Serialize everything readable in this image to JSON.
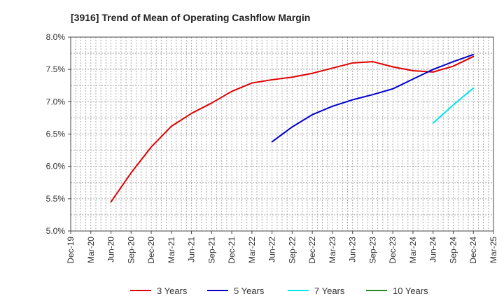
{
  "title": "[3916]  Trend of Mean of Operating Cashflow Margin",
  "chart_data": {
    "type": "line",
    "title": "[3916]  Trend of Mean of Operating Cashflow Margin",
    "xlabel": "",
    "ylabel": "",
    "x_ticks": [
      "Dec-19",
      "Mar-20",
      "Jun-20",
      "Sep-20",
      "Dec-20",
      "Mar-21",
      "Jun-21",
      "Sep-21",
      "Dec-21",
      "Mar-22",
      "Jun-22",
      "Sep-22",
      "Dec-22",
      "Mar-23",
      "Jun-23",
      "Sep-23",
      "Dec-23",
      "Mar-24",
      "Jun-24",
      "Sep-24",
      "Dec-24",
      "Mar-25"
    ],
    "y_ticks": [
      "5.0%",
      "5.5%",
      "6.0%",
      "6.5%",
      "7.0%",
      "7.5%",
      "8.0%"
    ],
    "ylim": [
      5.0,
      8.0
    ],
    "y_unit": "%",
    "grid": true,
    "legend_position": "bottom",
    "series": [
      {
        "name": "3 Years",
        "color": "#e00000",
        "x": [
          "Jun-20",
          "Sep-20",
          "Dec-20",
          "Mar-21",
          "Jun-21",
          "Sep-21",
          "Dec-21",
          "Mar-22",
          "Jun-22",
          "Sep-22",
          "Dec-22",
          "Mar-23",
          "Jun-23",
          "Sep-23",
          "Dec-23",
          "Mar-24",
          "Jun-24",
          "Sep-24",
          "Dec-24"
        ],
        "values": [
          5.45,
          5.9,
          6.3,
          6.62,
          6.82,
          6.98,
          7.16,
          7.29,
          7.34,
          7.38,
          7.44,
          7.52,
          7.6,
          7.62,
          7.54,
          7.48,
          7.46,
          7.55,
          7.7
        ]
      },
      {
        "name": "5 Years",
        "color": "#0000cc",
        "x": [
          "Jun-22",
          "Sep-22",
          "Dec-22",
          "Mar-23",
          "Jun-23",
          "Sep-23",
          "Dec-23",
          "Mar-24",
          "Jun-24",
          "Sep-24",
          "Dec-24"
        ],
        "values": [
          6.38,
          6.61,
          6.8,
          6.93,
          7.03,
          7.11,
          7.2,
          7.35,
          7.5,
          7.62,
          7.73
        ]
      },
      {
        "name": "7 Years",
        "color": "#00e5ee",
        "x": [
          "Jun-24",
          "Sep-24",
          "Dec-24"
        ],
        "values": [
          6.67,
          6.95,
          7.21
        ]
      },
      {
        "name": "10 Years",
        "color": "#228b22",
        "x": [],
        "values": []
      }
    ]
  }
}
